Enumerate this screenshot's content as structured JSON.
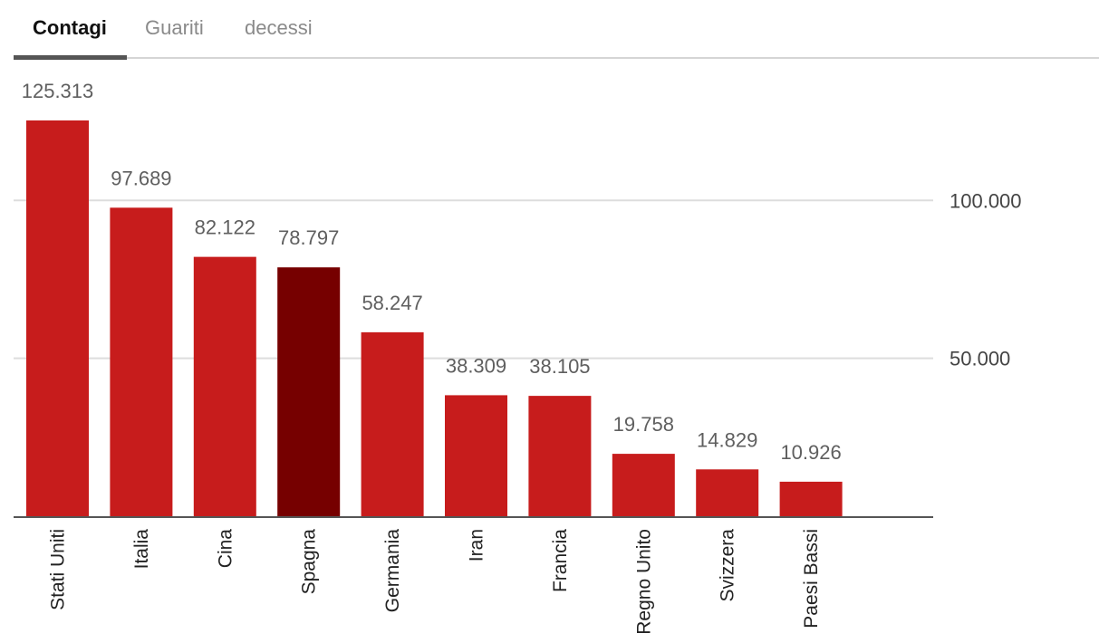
{
  "tabs": [
    {
      "label": "Contagi",
      "active": true
    },
    {
      "label": "Guariti",
      "active": false
    },
    {
      "label": "decessi",
      "active": false
    }
  ],
  "colors": {
    "bar": "#c71c1c",
    "highlight": "#760000",
    "grid": "#dddddd",
    "axis": "#555555"
  },
  "chart_data": {
    "type": "bar",
    "categories": [
      "Stati Uniti",
      "Italia",
      "Cina",
      "Spagna",
      "Germania",
      "Iran",
      "Francia",
      "Regno Unito",
      "Svizzera",
      "Paesi Bassi"
    ],
    "values": [
      125313,
      97689,
      82122,
      78797,
      58247,
      38309,
      38105,
      19758,
      14829,
      10926
    ],
    "value_labels": [
      "125.313",
      "97.689",
      "82.122",
      "78.797",
      "58.247",
      "38.309",
      "38.105",
      "19.758",
      "14.829",
      "10.926"
    ],
    "highlighted_category": "Spagna",
    "yticks": [
      50000,
      100000
    ],
    "ytick_labels": [
      "50.000",
      "100.000"
    ],
    "ylim": [
      0,
      125313
    ],
    "grid": true,
    "yaxis_position": "right"
  }
}
